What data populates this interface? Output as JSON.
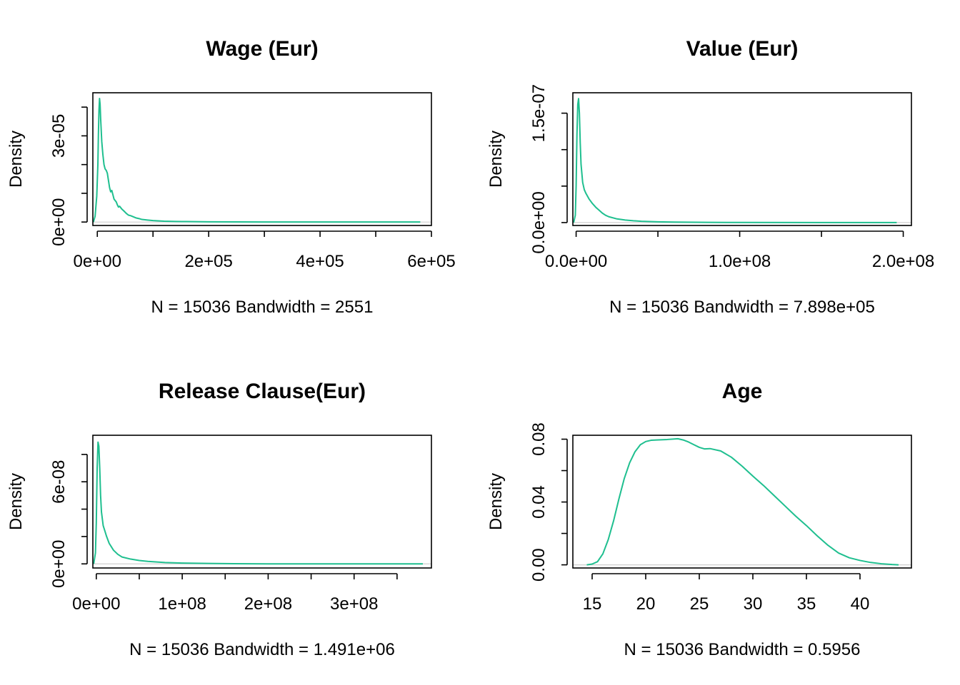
{
  "colors": {
    "curve": "#1fbf8f",
    "baseline": "#d0d0d0"
  },
  "chart_data": [
    {
      "type": "line",
      "title": "Wage (Eur)",
      "ylabel": "Density",
      "sub": "N = 15036   Bandwidth = 2551",
      "xlim": [
        -8000,
        600000
      ],
      "ylim": [
        -1.2e-06,
        4.5e-05
      ],
      "xticks": [
        0,
        100000,
        200000,
        300000,
        400000,
        500000,
        600000
      ],
      "xtick_labels": [
        "0e+00",
        "",
        "2e+05",
        "",
        "4e+05",
        "",
        "6e+05"
      ],
      "yticks": [
        0,
        1e-05,
        2e-05,
        3e-05,
        4e-05
      ],
      "ytick_labels": [
        "0e+00",
        "",
        "",
        "3e-05",
        ""
      ],
      "series": [
        {
          "x": [
            -7000,
            -4000,
            -1000,
            1000,
            2000,
            3000,
            4000,
            5000,
            6000,
            8000,
            10000,
            12000,
            14000,
            16000,
            18000,
            20000,
            22000,
            24000,
            26000,
            28000,
            30000,
            32000,
            34000,
            36000,
            38000,
            40000,
            44000,
            48000,
            52000,
            56000,
            60000,
            65000,
            70000,
            75000,
            80000,
            90000,
            100000,
            120000,
            140000,
            160000,
            200000,
            250000,
            300000,
            400000,
            500000,
            580000
          ],
          "y": [
            0,
            2e-06,
            9e-06,
            2e-05,
            3.1e-05,
            3.9e-05,
            4.3e-05,
            4.1e-05,
            3.6e-05,
            2.8e-05,
            2.35e-05,
            2e-05,
            1.85e-05,
            1.8e-05,
            1.7e-05,
            1.45e-05,
            1.2e-05,
            1.05e-05,
            1.1e-05,
            9.5e-06,
            8e-06,
            7.5e-06,
            7e-06,
            6e-06,
            5.2e-06,
            5.5e-06,
            4.5e-06,
            3.8e-06,
            3e-06,
            2.4e-06,
            2.2e-06,
            1.8e-06,
            1.4e-06,
            1.2e-06,
            9e-07,
            7e-07,
            5e-07,
            3e-07,
            2e-07,
            1.5e-07,
            8e-08,
            4e-08,
            2e-08,
            0,
            0,
            0
          ]
        }
      ]
    },
    {
      "type": "line",
      "title": "Value (Eur)",
      "ylabel": "Density",
      "sub": "N = 15036   Bandwidth = 7.898e+05",
      "xlim": [
        -2000000,
        205000000
      ],
      "ylim": [
        -4e-09,
        1.78e-07
      ],
      "xticks": [
        0,
        50000000,
        100000000,
        150000000,
        200000000
      ],
      "xtick_labels": [
        "0.0e+00",
        "",
        "1.0e+08",
        "",
        "2.0e+08"
      ],
      "yticks": [
        0,
        5e-08,
        1e-07,
        1.5e-07
      ],
      "ytick_labels": [
        "0.0e+00",
        "",
        "",
        "1.5e-07"
      ],
      "series": [
        {
          "x": [
            -1500000,
            -500000,
            0,
            500000,
            1000000,
            1500000,
            2000000,
            2500000,
            3000000,
            4000000,
            5000000,
            6000000,
            7000000,
            8000000,
            10000000,
            12000000,
            14000000,
            16000000,
            18000000,
            20000000,
            25000000,
            30000000,
            35000000,
            40000000,
            50000000,
            60000000,
            80000000,
            100000000,
            150000000,
            196000000
          ],
          "y": [
            0,
            1e-08,
            5e-08,
            1.2e-07,
            1.62e-07,
            1.7e-07,
            1.5e-07,
            1.1e-07,
            8e-08,
            5.5e-08,
            4.5e-08,
            4e-08,
            3.6e-08,
            3.2e-08,
            2.6e-08,
            2.1e-08,
            1.7e-08,
            1.3e-08,
            1e-08,
            8e-09,
            5e-09,
            3.5e-09,
            2.5e-09,
            1.8e-09,
            1e-09,
            6e-10,
            3e-10,
            1e-10,
            0,
            0
          ]
        }
      ]
    },
    {
      "type": "line",
      "title": "Release Clause(Eur)",
      "ylabel": "Density",
      "sub": "N = 15036   Bandwidth = 1.491e+06",
      "xlim": [
        -4000000,
        390000000
      ],
      "ylim": [
        -3e-09,
        9.4e-08
      ],
      "xticks": [
        0,
        50000000,
        100000000,
        150000000,
        200000000,
        250000000,
        300000000,
        350000000
      ],
      "xtick_labels": [
        "0e+00",
        "",
        "1e+08",
        "",
        "2e+08",
        "",
        "3e+08",
        ""
      ],
      "yticks": [
        0,
        2e-08,
        4e-08,
        6e-08,
        8e-08
      ],
      "ytick_labels": [
        "0e+00",
        "",
        "",
        "6e-08",
        ""
      ],
      "series": [
        {
          "x": [
            -3000000,
            -1000000,
            0,
            1000000,
            2000000,
            3000000,
            4000000,
            5000000,
            6000000,
            8000000,
            10000000,
            12000000,
            15000000,
            20000000,
            25000000,
            30000000,
            40000000,
            50000000,
            60000000,
            80000000,
            100000000,
            130000000,
            160000000,
            200000000,
            250000000,
            300000000,
            380000000
          ],
          "y": [
            0,
            8e-09,
            3e-08,
            7e-08,
            8.9e-08,
            8.6e-08,
            7e-08,
            5e-08,
            3.8e-08,
            2.8e-08,
            2.4e-08,
            2e-08,
            1.5e-08,
            1e-08,
            7e-09,
            5e-09,
            3.5e-09,
            2.5e-09,
            1.8e-09,
            1e-09,
            6e-10,
            3e-10,
            1e-10,
            0,
            0,
            0,
            0
          ]
        }
      ]
    },
    {
      "type": "line",
      "title": "Age",
      "ylabel": "Density",
      "sub": "N = 15036   Bandwidth = 0.5956",
      "xlim": [
        13.2,
        44.8
      ],
      "ylim": [
        -0.002,
        0.0825
      ],
      "xticks": [
        15,
        20,
        25,
        30,
        35,
        40
      ],
      "xtick_labels": [
        "15",
        "20",
        "25",
        "30",
        "35",
        "40"
      ],
      "yticks": [
        0,
        0.02,
        0.04,
        0.06,
        0.08
      ],
      "ytick_labels": [
        "0.00",
        "",
        "0.04",
        "",
        "0.08"
      ],
      "series": [
        {
          "x": [
            14.5,
            15,
            15.5,
            16,
            16.5,
            17,
            17.5,
            18,
            18.5,
            19,
            19.5,
            20,
            20.5,
            21,
            22,
            23,
            23.5,
            24,
            24.5,
            25,
            25.5,
            26,
            27,
            28,
            29,
            30,
            31,
            32,
            33,
            34,
            35,
            36,
            37,
            38,
            39,
            40,
            41,
            42,
            43,
            43.6
          ],
          "y": [
            0,
            0.0005,
            0.002,
            0.007,
            0.016,
            0.028,
            0.042,
            0.055,
            0.065,
            0.072,
            0.0765,
            0.0785,
            0.0793,
            0.0795,
            0.0798,
            0.0803,
            0.0795,
            0.0782,
            0.0765,
            0.0748,
            0.0738,
            0.074,
            0.0725,
            0.0685,
            0.0628,
            0.0565,
            0.0505,
            0.044,
            0.0375,
            0.031,
            0.025,
            0.0185,
            0.0125,
            0.0075,
            0.0045,
            0.0028,
            0.0015,
            0.0007,
            0.0002,
            0
          ]
        }
      ]
    }
  ]
}
